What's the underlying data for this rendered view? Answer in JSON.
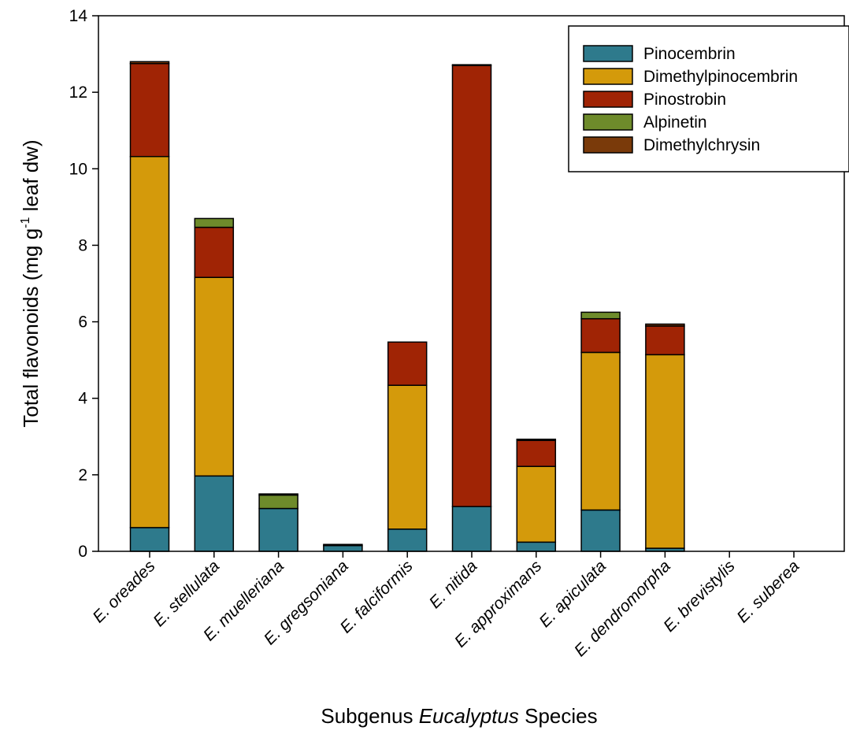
{
  "chart_data": {
    "type": "bar",
    "stacked": true,
    "categories": [
      "E. oreades",
      "E. stellulata",
      "E. muelleriana",
      "E. gregsoniana",
      "E. falciformis",
      "E. nitida",
      "E. approximans",
      "E. apiculata",
      "E. dendromorpha",
      "E. brevistylis",
      "E. suberea"
    ],
    "series": [
      {
        "name": "Pinocembrin",
        "color": "#2e7a8c",
        "values": [
          0.62,
          1.97,
          1.12,
          0.15,
          0.58,
          1.17,
          0.24,
          1.08,
          0.08,
          0,
          0
        ]
      },
      {
        "name": "Dimethylpinocembrin",
        "color": "#d49a0b",
        "values": [
          9.7,
          5.19,
          0,
          0,
          3.76,
          0,
          1.98,
          4.12,
          5.06,
          0,
          0
        ]
      },
      {
        "name": "Pinostrobin",
        "color": "#a02405",
        "values": [
          2.43,
          1.31,
          0,
          0,
          1.13,
          11.53,
          0.68,
          0.88,
          0.75,
          0,
          0
        ]
      },
      {
        "name": "Alpinetin",
        "color": "#6e8b2b",
        "values": [
          0,
          0.23,
          0.35,
          0,
          0,
          0,
          0,
          0.17,
          0,
          0,
          0
        ]
      },
      {
        "name": "Dimethylchrysin",
        "color": "#7a3a0a",
        "values": [
          0.05,
          0,
          0.03,
          0.03,
          0,
          0.02,
          0.03,
          0,
          0.05,
          0,
          0
        ]
      }
    ],
    "ylabel_prefix": "Total flavonoids (mg g",
    "ylabel_sup": "-1",
    "ylabel_suffix": " leaf dw)",
    "xlabel_prefix": "Subgenus ",
    "xlabel_italic": "Eucalyptus",
    "xlabel_suffix": " Species",
    "ylim": [
      0,
      14
    ],
    "yticks": [
      "0",
      "2",
      "4",
      "6",
      "8",
      "10",
      "12",
      "14"
    ],
    "grid": false,
    "legend_position": "top-right"
  }
}
